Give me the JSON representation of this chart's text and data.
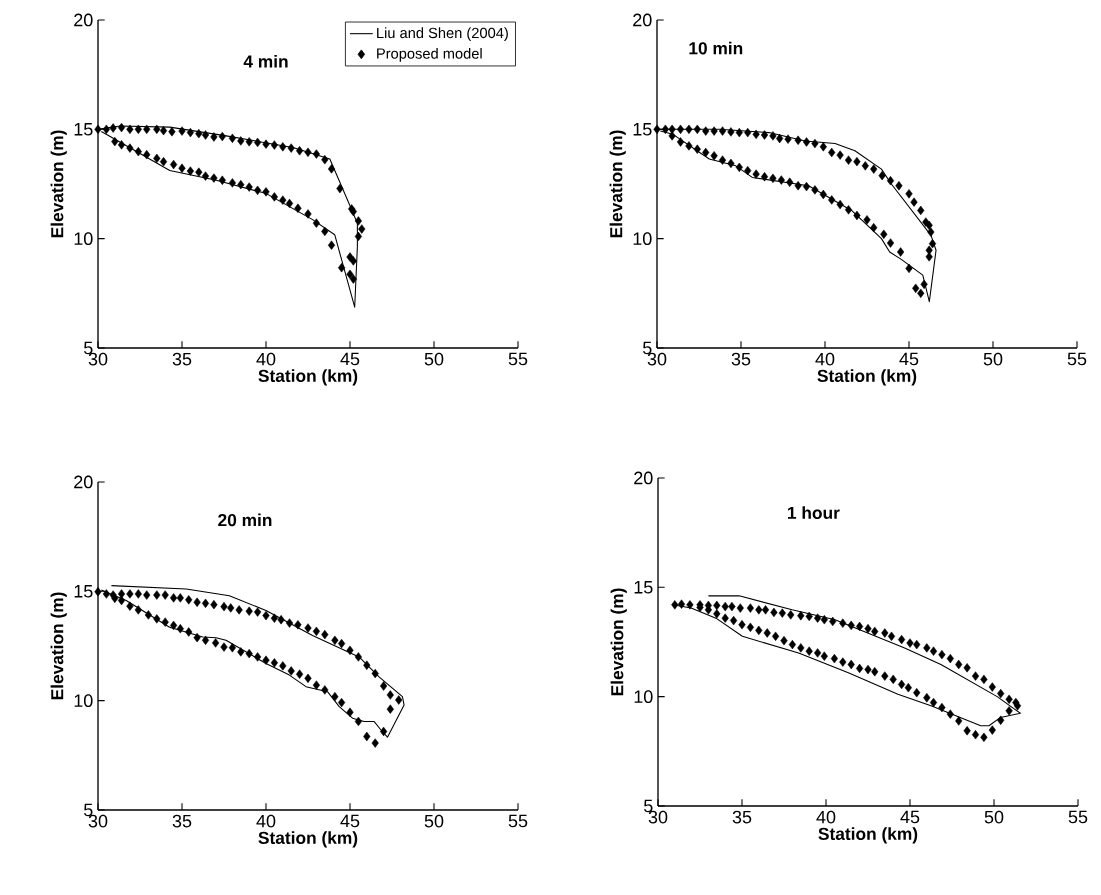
{
  "chart_data": [
    {
      "type": "scatter",
      "title": "4 min",
      "xlabel": "Station (km)",
      "ylabel": "Elevation (m)",
      "xlim": [
        30,
        55
      ],
      "ylim": [
        5,
        20
      ],
      "xticks": [
        30,
        35,
        40,
        45,
        50,
        55
      ],
      "yticks": [
        5,
        10,
        15,
        20
      ],
      "legend": "top right",
      "series": [
        {
          "name": "Liu and Shen (2004)",
          "type": "line",
          "color": "#000000",
          "line_style": "solid",
          "x": [
            30.0,
            31.3,
            34.27,
            37.64,
            41.6,
            43.8,
            44.98,
            45.44,
            45.44,
            45.28,
            44.09,
            42.8,
            40.02,
            37.04,
            34.27,
            31.69,
            30.2
          ],
          "values": [
            15.0,
            15.15,
            15.1,
            14.7,
            14.17,
            13.64,
            11.54,
            10.7,
            9.65,
            6.87,
            10.18,
            10.86,
            12.06,
            12.67,
            13.12,
            14.25,
            14.9
          ]
        },
        {
          "name": "Proposed model",
          "type": "scatter",
          "color": "#000000",
          "marker": "diamond",
          "x": [
            30.0,
            30.5,
            30.9,
            31.4,
            31.9,
            32.4,
            32.9,
            33.5,
            33.9,
            34.4,
            35.0,
            35.5,
            36.0,
            36.4,
            36.9,
            37.4,
            38.0,
            38.5,
            39.0,
            39.5,
            40.0,
            40.5,
            41.0,
            41.5,
            42.0,
            42.5,
            43.0,
            43.5,
            43.9,
            44.4,
            45.1,
            45.2,
            45.5,
            45.7,
            45.5,
            31.0,
            31.4,
            31.9,
            32.4,
            32.9,
            33.5,
            33.9,
            34.5,
            35.0,
            35.5,
            36.0,
            36.4,
            36.9,
            37.4,
            38.0,
            38.5,
            39.0,
            39.5,
            40.0,
            40.5,
            41.0,
            41.4,
            41.9,
            42.5,
            43.0,
            43.5,
            43.9,
            44.5,
            45.0,
            45.2,
            45.0,
            45.2
          ],
          "values": [
            15.0,
            15.0,
            15.06,
            15.08,
            15.0,
            15.0,
            15.0,
            15.0,
            14.94,
            14.89,
            14.92,
            14.85,
            14.8,
            14.74,
            14.65,
            14.67,
            14.59,
            14.47,
            14.43,
            14.4,
            14.32,
            14.28,
            14.2,
            14.14,
            14.02,
            13.95,
            13.87,
            13.61,
            13.19,
            12.29,
            11.36,
            11.24,
            10.81,
            10.44,
            10.1,
            14.44,
            14.29,
            14.14,
            13.98,
            13.84,
            13.67,
            13.52,
            13.39,
            13.22,
            13.09,
            13.04,
            12.86,
            12.77,
            12.67,
            12.55,
            12.47,
            12.36,
            12.21,
            12.14,
            11.91,
            11.76,
            11.61,
            11.39,
            11.13,
            10.71,
            10.33,
            9.7,
            8.67,
            9.16,
            8.98,
            8.37,
            8.15
          ]
        }
      ]
    },
    {
      "type": "scatter",
      "title": "10 min",
      "xlabel": "Station (km)",
      "ylabel": "Elevation (m)",
      "xlim": [
        30,
        55
      ],
      "ylim": [
        5,
        20
      ],
      "xticks": [
        30,
        35,
        40,
        45,
        50,
        55
      ],
      "yticks": [
        5,
        10,
        15,
        20
      ],
      "series": [
        {
          "type": "line",
          "color": "#000000",
          "line_style": "solid",
          "x": [
            30.0,
            33.7,
            36.66,
            38.83,
            40.6,
            41.78,
            43.36,
            43.95,
            46.31,
            46.61,
            46.21,
            45.82,
            44.54,
            43.85,
            43.36,
            41.58,
            39.02,
            35.67,
            34.69,
            33.11,
            30.95,
            30.2
          ],
          "values": [
            15.0,
            15.0,
            14.85,
            14.47,
            14.35,
            14.02,
            13.18,
            12.5,
            10.15,
            9.47,
            7.12,
            8.33,
            9.05,
            9.39,
            10.0,
            11.29,
            12.42,
            12.8,
            13.33,
            13.64,
            14.77,
            14.92
          ]
        },
        {
          "type": "scatter",
          "color": "#000000",
          "marker": "diamond",
          "x": [
            30.0,
            30.5,
            30.9,
            31.4,
            31.9,
            32.4,
            32.9,
            33.4,
            33.9,
            34.4,
            34.9,
            35.4,
            35.9,
            36.4,
            36.9,
            37.3,
            37.8,
            38.4,
            38.9,
            39.4,
            39.9,
            40.4,
            40.9,
            41.4,
            41.9,
            42.4,
            42.9,
            43.4,
            43.9,
            44.4,
            45.0,
            45.3,
            45.7,
            46.0,
            46.2,
            46.3,
            46.4,
            46.2,
            46.2,
            30.9,
            31.4,
            31.9,
            32.4,
            32.9,
            33.4,
            33.9,
            34.4,
            34.9,
            35.4,
            35.9,
            36.4,
            36.9,
            37.4,
            37.9,
            38.4,
            38.9,
            39.4,
            39.9,
            40.4,
            40.9,
            41.4,
            41.9,
            42.5,
            42.9,
            43.5,
            43.9,
            44.5,
            45.0,
            45.4,
            45.7,
            45.9
          ],
          "values": [
            15.0,
            15.0,
            15.0,
            15.0,
            15.0,
            15.0,
            14.92,
            14.92,
            14.92,
            14.88,
            14.85,
            14.85,
            14.77,
            14.74,
            14.7,
            14.58,
            14.55,
            14.5,
            14.42,
            14.35,
            14.2,
            13.94,
            13.82,
            13.59,
            13.52,
            13.33,
            13.18,
            12.88,
            12.65,
            12.42,
            12.05,
            11.67,
            11.29,
            10.76,
            10.61,
            10.3,
            9.77,
            9.47,
            9.17,
            14.7,
            14.42,
            14.24,
            14.09,
            13.94,
            13.79,
            13.59,
            13.44,
            13.26,
            13.11,
            12.95,
            12.83,
            12.76,
            12.68,
            12.58,
            12.42,
            12.38,
            12.23,
            12.02,
            11.77,
            11.56,
            11.32,
            11.06,
            10.86,
            10.5,
            10.2,
            9.8,
            9.39,
            8.64,
            7.73,
            7.5,
            7.91
          ]
        }
      ]
    },
    {
      "type": "scatter",
      "title": "20 min",
      "xlabel": "Station (km)",
      "ylabel": "Elevation (m)",
      "xlim": [
        30,
        55
      ],
      "ylim": [
        5,
        20
      ],
      "xticks": [
        30,
        35,
        40,
        45,
        50,
        55
      ],
      "yticks": [
        5,
        10,
        15,
        20
      ],
      "series": [
        {
          "type": "line",
          "color": "#000000",
          "line_style": "solid",
          "x": [
            30.8,
            35.25,
            37.82,
            40.0,
            42.77,
            45.54,
            46.73,
            48.12,
            48.22,
            47.23,
            46.83,
            46.43,
            45.84,
            45.15,
            44.36,
            43.66,
            42.38,
            41.39,
            40.0,
            37.62,
            37.03,
            36.24,
            34.26,
            31.68,
            30.2
          ],
          "values": [
            15.26,
            15.11,
            14.8,
            14.12,
            12.98,
            12.0,
            11.09,
            10.18,
            9.8,
            8.33,
            8.67,
            9.05,
            9.05,
            9.2,
            9.73,
            10.41,
            10.64,
            11.17,
            11.7,
            12.76,
            12.88,
            12.91,
            13.36,
            14.58,
            15.06
          ]
        },
        {
          "type": "scatter",
          "color": "#000000",
          "marker": "diamond",
          "x": [
            30.0,
            30.5,
            30.9,
            31.4,
            31.9,
            32.4,
            32.9,
            33.5,
            34.0,
            34.5,
            34.9,
            35.4,
            35.9,
            36.4,
            36.9,
            37.5,
            37.9,
            38.4,
            39.0,
            39.5,
            40.0,
            40.5,
            40.9,
            41.4,
            41.9,
            42.5,
            43.0,
            43.5,
            44.1,
            44.5,
            45.0,
            45.5,
            46.0,
            46.5,
            47.0,
            47.4,
            47.9,
            47.4,
            31.0,
            31.4,
            31.9,
            32.4,
            33.0,
            33.5,
            34.0,
            34.5,
            34.9,
            35.4,
            35.9,
            36.4,
            37.0,
            37.5,
            38.0,
            38.5,
            39.0,
            39.5,
            40.0,
            40.5,
            41.0,
            41.5,
            42.0,
            42.5,
            43.0,
            43.5,
            44.1,
            44.5,
            45.0,
            45.5,
            46.0,
            46.5,
            47.0
          ],
          "values": [
            14.98,
            14.88,
            14.83,
            14.88,
            14.88,
            14.88,
            14.83,
            14.83,
            14.83,
            14.7,
            14.7,
            14.61,
            14.5,
            14.45,
            14.39,
            14.3,
            14.24,
            14.15,
            14.09,
            14.05,
            13.89,
            13.77,
            13.7,
            13.55,
            13.47,
            13.32,
            13.17,
            13.02,
            12.76,
            12.61,
            12.3,
            12.0,
            11.62,
            11.24,
            10.67,
            10.26,
            10.03,
            9.61,
            14.68,
            14.58,
            14.32,
            14.15,
            13.92,
            13.74,
            13.59,
            13.44,
            13.29,
            13.14,
            12.88,
            12.76,
            12.64,
            12.45,
            12.42,
            12.23,
            12.15,
            12.0,
            11.85,
            11.73,
            11.59,
            11.36,
            11.21,
            11.02,
            10.71,
            10.49,
            10.18,
            9.91,
            9.47,
            9.05,
            8.36,
            8.06,
            8.59
          ]
        }
      ]
    },
    {
      "type": "scatter",
      "title": "1 hour",
      "xlabel": "Station (km)",
      "ylabel": "Elevation (m)",
      "xlim": [
        30,
        55
      ],
      "ylim": [
        5,
        20
      ],
      "xticks": [
        30,
        35,
        40,
        45,
        50,
        55
      ],
      "yticks": [
        5,
        10,
        15,
        20
      ],
      "series": [
        {
          "type": "line",
          "color": "#000000",
          "line_style": "solid",
          "x": [
            33.0,
            34.83,
            37.98,
            40.54,
            44.68,
            46.84,
            50.19,
            51.57,
            50.39,
            49.7,
            49.21,
            46.25,
            44.28,
            41.33,
            38.37,
            35.02,
            33.45,
            31.97,
            30.89
          ],
          "values": [
            14.61,
            14.61,
            13.97,
            13.52,
            12.23,
            11.47,
            10.0,
            9.24,
            9.05,
            8.67,
            8.67,
            9.58,
            10.11,
            11.09,
            12.0,
            12.76,
            13.59,
            14.05,
            14.2
          ]
        },
        {
          "type": "scatter",
          "color": "#000000",
          "marker": "diamond",
          "x": [
            31.0,
            31.4,
            31.9,
            32.5,
            33.0,
            33.5,
            34.0,
            34.4,
            34.9,
            35.5,
            36.0,
            36.4,
            36.9,
            37.4,
            37.9,
            38.5,
            39.0,
            39.5,
            39.9,
            40.4,
            41.0,
            41.5,
            42.0,
            42.5,
            42.9,
            43.5,
            43.9,
            44.5,
            45.0,
            45.4,
            46.0,
            46.4,
            46.9,
            47.4,
            47.9,
            48.4,
            48.9,
            49.4,
            49.9,
            50.4,
            50.9,
            51.3,
            51.4,
            32.5,
            33.0,
            33.5,
            34.0,
            34.5,
            35.0,
            35.5,
            36.0,
            36.5,
            37.0,
            37.5,
            38.0,
            38.5,
            39.0,
            39.5,
            39.9,
            40.5,
            41.0,
            41.5,
            42.0,
            42.5,
            42.9,
            43.5,
            44.0,
            44.5,
            44.9,
            45.4,
            46.0,
            46.4,
            46.9,
            47.4,
            47.9,
            48.4,
            48.9,
            49.4,
            49.9,
            50.4,
            50.9
          ],
          "values": [
            14.2,
            14.23,
            14.2,
            14.2,
            14.17,
            14.17,
            14.12,
            14.12,
            14.05,
            14.05,
            13.97,
            13.97,
            13.85,
            13.82,
            13.74,
            13.7,
            13.67,
            13.59,
            13.52,
            13.44,
            13.36,
            13.26,
            13.21,
            13.11,
            12.98,
            12.91,
            12.76,
            12.61,
            12.45,
            12.38,
            12.23,
            12.08,
            11.92,
            11.74,
            11.47,
            11.32,
            10.94,
            10.79,
            10.44,
            10.14,
            9.88,
            9.73,
            9.58,
            14.08,
            13.97,
            13.79,
            13.59,
            13.48,
            13.29,
            13.17,
            13.03,
            12.91,
            12.76,
            12.56,
            12.38,
            12.23,
            12.08,
            12.0,
            11.85,
            11.74,
            11.58,
            11.47,
            11.29,
            11.24,
            11.14,
            10.94,
            10.79,
            10.56,
            10.41,
            10.18,
            9.95,
            9.73,
            9.5,
            9.2,
            8.89,
            8.44,
            8.26,
            8.14,
            8.47,
            8.92,
            9.35
          ]
        }
      ]
    }
  ]
}
